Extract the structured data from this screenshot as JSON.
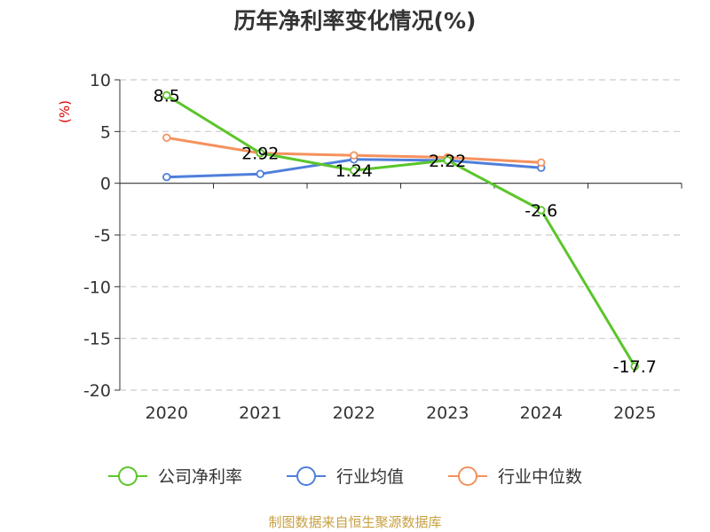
{
  "chart_data": {
    "type": "line",
    "title": "历年净利率变化情况(%)",
    "unit_label": "(%)",
    "categories": [
      "2020",
      "2021",
      "2022",
      "2023",
      "2024",
      "2025"
    ],
    "ylim": [
      -20,
      10
    ],
    "yticks": [
      10,
      5,
      0,
      -5,
      -10,
      -15,
      -20
    ],
    "grid": true,
    "legend_position": "bottom",
    "series": [
      {
        "name": "公司净利率",
        "color": "#5bc52b",
        "values": [
          8.5,
          2.92,
          1.24,
          2.22,
          -2.6,
          -17.7
        ],
        "labels": [
          "8.5",
          "2.92",
          "1.24",
          "2.22",
          "-2.6",
          "-17.7"
        ]
      },
      {
        "name": "行业均值",
        "color": "#4f7fdb",
        "values": [
          0.6,
          0.9,
          2.3,
          2.2,
          1.5,
          null
        ]
      },
      {
        "name": "行业中位数",
        "color": "#f5915d",
        "values": [
          4.4,
          2.9,
          2.7,
          2.5,
          2.0,
          null
        ]
      }
    ]
  },
  "source": "制图数据来自恒生聚源数据库"
}
